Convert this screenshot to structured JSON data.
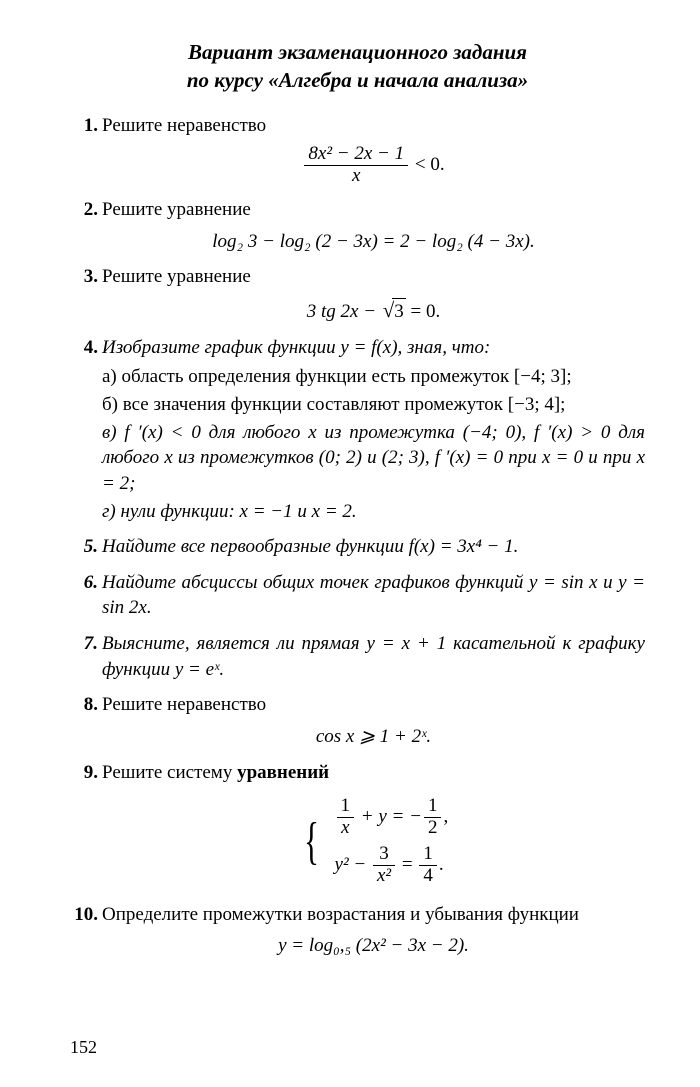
{
  "title_line1": "Вариант экзаменационного задания",
  "title_line2": "по курсу «Алгебра и начала анализа»",
  "p1": {
    "text": "Решите неравенство",
    "frac_num": "8x² − 2x − 1",
    "frac_den": "x",
    "tail": " < 0."
  },
  "p2": {
    "text": "Решите уравнение",
    "eq": "log₂ 3 − log₂ (2 − 3x) = 2 − log₂ (4 − 3x)."
  },
  "p3": {
    "text": "Решите уравнение",
    "eq_pre": "3 tg 2x − ",
    "eq_rad": "3",
    "eq_post": " = 0."
  },
  "p4": {
    "intro": "Изобразите график функции y = f(x), зная, что:",
    "a": "а) область определения функции есть промежуток [−4; 3];",
    "b": "б) все значения функции составляют промежуток [−3; 4];",
    "c1": "в) f ′(x) < 0 для любого x из промежутка (−4; 0), f ′(x) > 0 для любого x из промежутков (0; 2) и (2; 3), f ′(x) = 0 при x = 0 и при x = 2;",
    "d": "г) нули функции: x = −1 и x = 2."
  },
  "p5": "Найдите все первообразные функции f(x) = 3x⁴ − 1.",
  "p6": "Найдите абсциссы общих точек графиков функций y = sin x и y = sin 2x.",
  "p7": "Выясните, является ли прямая y = x + 1 касательной к графику функции y = eˣ.",
  "p8": {
    "text": "Решите неравенство",
    "eq": "cos x  ⩾ 1 + 2ˣ."
  },
  "p9": {
    "text_a": "Решите систему ",
    "text_b": "уравнений",
    "row1_a": "1",
    "row1_b": "x",
    "row1_mid": " + y = −",
    "row1_c": "1",
    "row1_d": "2",
    "row1_end": ",",
    "row2_pre": "y² − ",
    "row2_a": "3",
    "row2_b": "x²",
    "row2_mid": " = ",
    "row2_c": "1",
    "row2_d": "4",
    "row2_end": "."
  },
  "p10": {
    "text": "Определите промежутки возрастания и убывания функции",
    "eq": "y = log₀,₅ (2x² − 3x − 2)."
  },
  "page_number": "152"
}
